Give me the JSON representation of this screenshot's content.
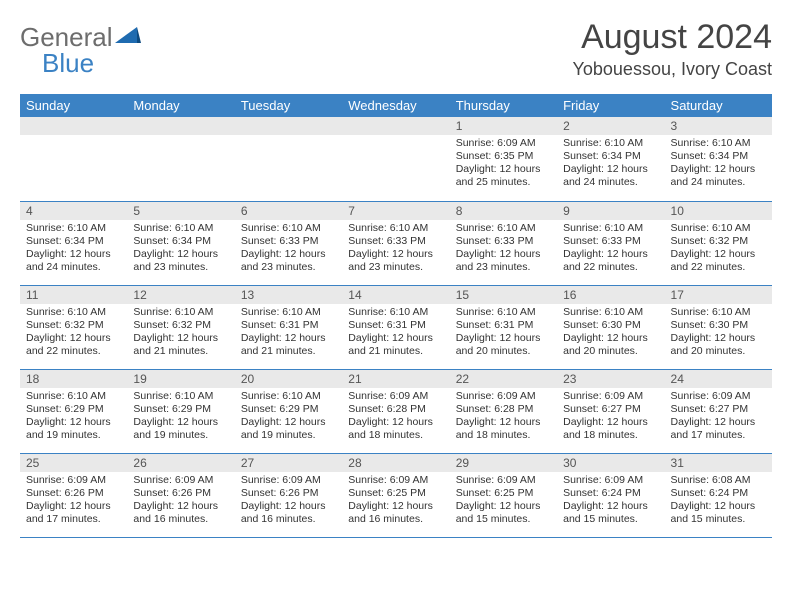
{
  "brand": {
    "word1": "General",
    "word2": "Blue",
    "logo_color": "#1f6bb0"
  },
  "colors": {
    "header_bg": "#3b82c4",
    "header_fg": "#ffffff",
    "stripe": "#e9e9e9",
    "rule": "#3b82c4"
  },
  "title": "August 2024",
  "location": "Yobouessou, Ivory Coast",
  "day_names": [
    "Sunday",
    "Monday",
    "Tuesday",
    "Wednesday",
    "Thursday",
    "Friday",
    "Saturday"
  ],
  "weeks": [
    [
      null,
      null,
      null,
      null,
      {
        "n": "1",
        "sr": "6:09 AM",
        "ss": "6:35 PM",
        "dl": "12 hours and 25 minutes."
      },
      {
        "n": "2",
        "sr": "6:10 AM",
        "ss": "6:34 PM",
        "dl": "12 hours and 24 minutes."
      },
      {
        "n": "3",
        "sr": "6:10 AM",
        "ss": "6:34 PM",
        "dl": "12 hours and 24 minutes."
      }
    ],
    [
      {
        "n": "4",
        "sr": "6:10 AM",
        "ss": "6:34 PM",
        "dl": "12 hours and 24 minutes."
      },
      {
        "n": "5",
        "sr": "6:10 AM",
        "ss": "6:34 PM",
        "dl": "12 hours and 23 minutes."
      },
      {
        "n": "6",
        "sr": "6:10 AM",
        "ss": "6:33 PM",
        "dl": "12 hours and 23 minutes."
      },
      {
        "n": "7",
        "sr": "6:10 AM",
        "ss": "6:33 PM",
        "dl": "12 hours and 23 minutes."
      },
      {
        "n": "8",
        "sr": "6:10 AM",
        "ss": "6:33 PM",
        "dl": "12 hours and 23 minutes."
      },
      {
        "n": "9",
        "sr": "6:10 AM",
        "ss": "6:33 PM",
        "dl": "12 hours and 22 minutes."
      },
      {
        "n": "10",
        "sr": "6:10 AM",
        "ss": "6:32 PM",
        "dl": "12 hours and 22 minutes."
      }
    ],
    [
      {
        "n": "11",
        "sr": "6:10 AM",
        "ss": "6:32 PM",
        "dl": "12 hours and 22 minutes."
      },
      {
        "n": "12",
        "sr": "6:10 AM",
        "ss": "6:32 PM",
        "dl": "12 hours and 21 minutes."
      },
      {
        "n": "13",
        "sr": "6:10 AM",
        "ss": "6:31 PM",
        "dl": "12 hours and 21 minutes."
      },
      {
        "n": "14",
        "sr": "6:10 AM",
        "ss": "6:31 PM",
        "dl": "12 hours and 21 minutes."
      },
      {
        "n": "15",
        "sr": "6:10 AM",
        "ss": "6:31 PM",
        "dl": "12 hours and 20 minutes."
      },
      {
        "n": "16",
        "sr": "6:10 AM",
        "ss": "6:30 PM",
        "dl": "12 hours and 20 minutes."
      },
      {
        "n": "17",
        "sr": "6:10 AM",
        "ss": "6:30 PM",
        "dl": "12 hours and 20 minutes."
      }
    ],
    [
      {
        "n": "18",
        "sr": "6:10 AM",
        "ss": "6:29 PM",
        "dl": "12 hours and 19 minutes."
      },
      {
        "n": "19",
        "sr": "6:10 AM",
        "ss": "6:29 PM",
        "dl": "12 hours and 19 minutes."
      },
      {
        "n": "20",
        "sr": "6:10 AM",
        "ss": "6:29 PM",
        "dl": "12 hours and 19 minutes."
      },
      {
        "n": "21",
        "sr": "6:09 AM",
        "ss": "6:28 PM",
        "dl": "12 hours and 18 minutes."
      },
      {
        "n": "22",
        "sr": "6:09 AM",
        "ss": "6:28 PM",
        "dl": "12 hours and 18 minutes."
      },
      {
        "n": "23",
        "sr": "6:09 AM",
        "ss": "6:27 PM",
        "dl": "12 hours and 18 minutes."
      },
      {
        "n": "24",
        "sr": "6:09 AM",
        "ss": "6:27 PM",
        "dl": "12 hours and 17 minutes."
      }
    ],
    [
      {
        "n": "25",
        "sr": "6:09 AM",
        "ss": "6:26 PM",
        "dl": "12 hours and 17 minutes."
      },
      {
        "n": "26",
        "sr": "6:09 AM",
        "ss": "6:26 PM",
        "dl": "12 hours and 16 minutes."
      },
      {
        "n": "27",
        "sr": "6:09 AM",
        "ss": "6:26 PM",
        "dl": "12 hours and 16 minutes."
      },
      {
        "n": "28",
        "sr": "6:09 AM",
        "ss": "6:25 PM",
        "dl": "12 hours and 16 minutes."
      },
      {
        "n": "29",
        "sr": "6:09 AM",
        "ss": "6:25 PM",
        "dl": "12 hours and 15 minutes."
      },
      {
        "n": "30",
        "sr": "6:09 AM",
        "ss": "6:24 PM",
        "dl": "12 hours and 15 minutes."
      },
      {
        "n": "31",
        "sr": "6:08 AM",
        "ss": "6:24 PM",
        "dl": "12 hours and 15 minutes."
      }
    ]
  ],
  "labels": {
    "sunrise": "Sunrise:",
    "sunset": "Sunset:",
    "daylight": "Daylight:"
  }
}
